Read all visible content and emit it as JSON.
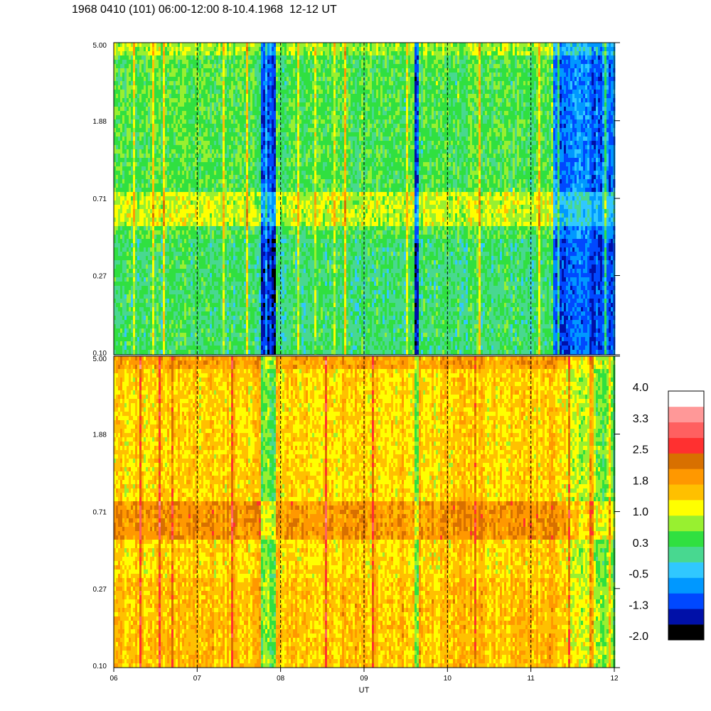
{
  "chart_data": {
    "type": "heatmap",
    "title": "1968 0410 (101) 06:00-12:00 8-10.4.1968  12-12 UT",
    "xlabel": "UT",
    "x_ticks": [
      "06",
      "07",
      "08",
      "09",
      "10",
      "11",
      "12"
    ],
    "xlim": [
      6,
      12
    ],
    "y_scale": "log",
    "panels": [
      {
        "name": "upper",
        "ylim": [
          0.1,
          5.0
        ],
        "y_ticks": [
          "5.00",
          "1.88",
          "0.71",
          "0.27",
          "0.10"
        ]
      },
      {
        "name": "lower",
        "ylim": [
          0.1,
          5.0
        ],
        "y_ticks": [
          "5.00",
          "1.88",
          "0.71",
          "0.27",
          "0.10"
        ]
      }
    ],
    "colorbar": {
      "range": [
        -2.0,
        4.0
      ],
      "labels": [
        "4.0",
        "3.3",
        "2.5",
        "1.8",
        "1.0",
        "0.3",
        "-0.5",
        "-1.3",
        "-2.0"
      ],
      "colors": [
        "#000000",
        "#0010a8",
        "#0048ff",
        "#0098ff",
        "#30c8ff",
        "#48d890",
        "#30e040",
        "#98f030",
        "#ffff00",
        "#ffc000",
        "#ff9800",
        "#d87000",
        "#ff3030",
        "#ff6060",
        "#ff9898",
        "#ffffff"
      ]
    }
  }
}
